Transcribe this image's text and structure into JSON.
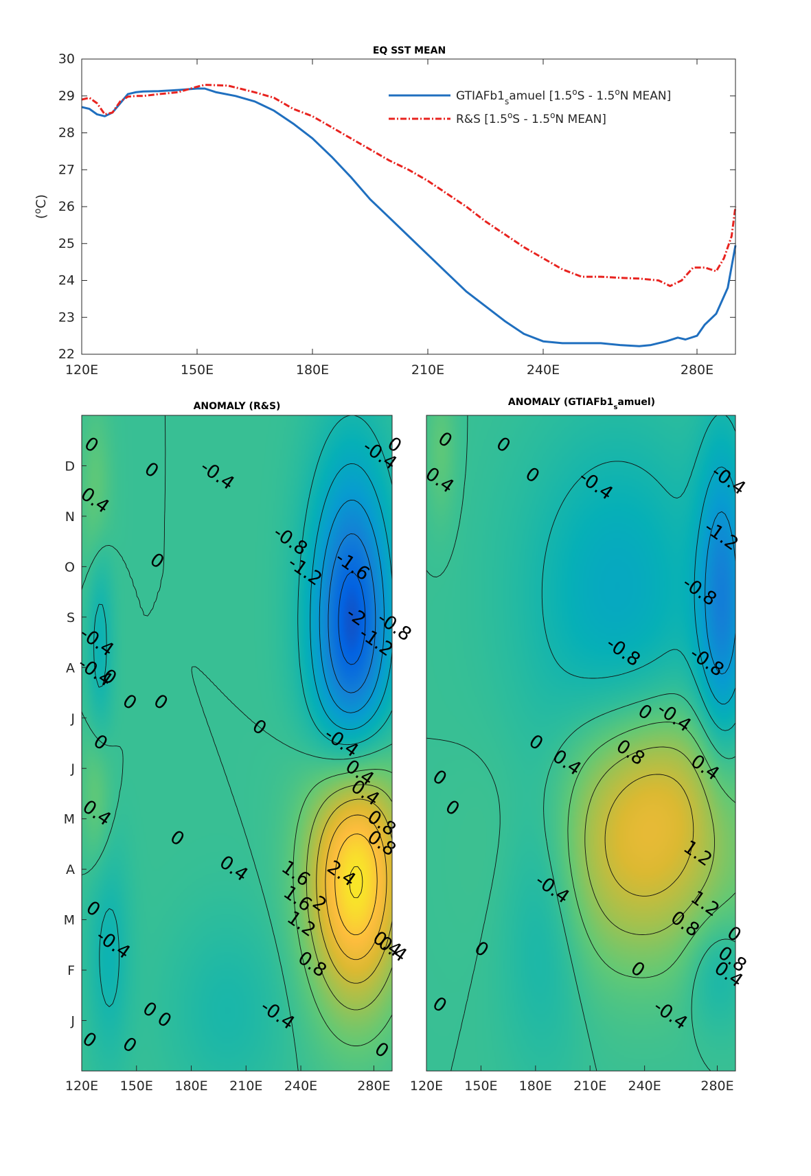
{
  "chart_data": [
    {
      "type": "line",
      "title": "EQ SST MEAN",
      "xlabel": "",
      "ylabel": "(°C)",
      "xlim": [
        120,
        290
      ],
      "ylim": [
        22,
        30
      ],
      "xticks": [
        120,
        150,
        180,
        210,
        240,
        280
      ],
      "xtick_labels": [
        "120E",
        "150E",
        "180E",
        "210E",
        "240E",
        "280E"
      ],
      "yticks": [
        22,
        23,
        24,
        25,
        26,
        27,
        28,
        29,
        30
      ],
      "grid": false,
      "legend_position": "top-right",
      "series": [
        {
          "name": "GTIAFb1_samuel [1.5°S - 1.5°N MEAN]",
          "legend_main": "GTIAFb1",
          "legend_sub": "s",
          "legend_tail": "amuel [1.5",
          "legend_o1": "o",
          "legend_mid": "S - 1.5",
          "legend_o2": "o",
          "legend_end": "N MEAN]",
          "color": "#1f6fbf",
          "style": "solid",
          "x": [
            120,
            122,
            124,
            126,
            128,
            130,
            132,
            134,
            136,
            140,
            145,
            150,
            152,
            155,
            160,
            165,
            170,
            175,
            180,
            185,
            190,
            195,
            200,
            205,
            210,
            215,
            220,
            225,
            230,
            235,
            240,
            245,
            250,
            255,
            260,
            265,
            268,
            272,
            275,
            277,
            280,
            282,
            285,
            288,
            290
          ],
          "y": [
            28.7,
            28.65,
            28.5,
            28.45,
            28.55,
            28.8,
            29.05,
            29.1,
            29.12,
            29.13,
            29.16,
            29.2,
            29.2,
            29.1,
            29.0,
            28.85,
            28.6,
            28.25,
            27.85,
            27.35,
            26.8,
            26.2,
            25.7,
            25.2,
            24.7,
            24.2,
            23.7,
            23.3,
            22.9,
            22.55,
            22.35,
            22.3,
            22.3,
            22.3,
            22.25,
            22.22,
            22.25,
            22.35,
            22.45,
            22.4,
            22.5,
            22.8,
            23.1,
            23.8,
            24.95
          ]
        },
        {
          "name": "R&S [1.5°S - 1.5°N MEAN]",
          "legend_main": "R&S [1.5",
          "legend_o1": "o",
          "legend_mid": "S - 1.5",
          "legend_o2": "o",
          "legend_end": "N MEAN]",
          "color": "#e8231f",
          "style": "dashdot",
          "x": [
            120,
            122,
            124,
            126,
            128,
            130,
            132,
            134,
            136,
            140,
            145,
            150,
            152,
            158,
            165,
            170,
            175,
            180,
            185,
            190,
            195,
            200,
            205,
            210,
            215,
            220,
            225,
            230,
            235,
            240,
            245,
            250,
            255,
            260,
            265,
            270,
            273,
            276,
            279,
            282,
            285,
            287,
            289,
            290
          ],
          "y": [
            28.9,
            28.95,
            28.8,
            28.5,
            28.55,
            28.85,
            28.98,
            29.0,
            29.0,
            29.05,
            29.1,
            29.25,
            29.3,
            29.28,
            29.1,
            28.95,
            28.65,
            28.45,
            28.15,
            27.85,
            27.55,
            27.25,
            27.0,
            26.7,
            26.35,
            26.0,
            25.6,
            25.25,
            24.9,
            24.6,
            24.3,
            24.1,
            24.1,
            24.07,
            24.05,
            24.0,
            23.85,
            24.0,
            24.35,
            24.35,
            24.25,
            24.6,
            25.2,
            26.0
          ]
        }
      ]
    },
    {
      "type": "heatmap",
      "title": "ANOMALY (R&S)",
      "xticks": [
        120,
        150,
        180,
        210,
        240,
        280
      ],
      "xtick_labels": [
        "120E",
        "150E",
        "180E",
        "210E",
        "240E",
        "280E"
      ],
      "xlim": [
        120,
        290
      ],
      "ytick_labels": [
        "J",
        "F",
        "M",
        "A",
        "M",
        "J",
        "J",
        "A",
        "S",
        "O",
        "N",
        "D"
      ],
      "ylim": [
        0,
        13
      ],
      "contour_levels": [
        -2,
        -1.6,
        -1.2,
        -0.8,
        -0.4,
        0,
        0.4,
        0.8,
        1.2,
        1.6,
        2,
        2.4
      ],
      "features": [
        {
          "x": 268,
          "y": 8.7,
          "value": -2.3,
          "sx": 16,
          "sy": 2.3
        },
        {
          "x": 270,
          "y": 4.0,
          "value": 2.7,
          "sx": 18,
          "sy": 1.8
        },
        {
          "x": 130,
          "y": 8.6,
          "value": -0.55,
          "sx": 5,
          "sy": 1.6
        },
        {
          "x": 135,
          "y": 2.3,
          "value": -0.5,
          "sx": 8,
          "sy": 1.5
        },
        {
          "x": 128,
          "y": 11.3,
          "value": 0.45,
          "sx": 6,
          "sy": 1.2
        },
        {
          "x": 128,
          "y": 5.5,
          "value": 0.45,
          "sx": 6,
          "sy": 1.0
        },
        {
          "x": 200,
          "y": 1.2,
          "value": -0.35,
          "sx": 22,
          "sy": 1.3
        }
      ],
      "contour_labels": [
        {
          "text": "0",
          "x": 125,
          "y": 12.4
        },
        {
          "text": "0.4",
          "x": 127,
          "y": 11.3
        },
        {
          "text": "0",
          "x": 158,
          "y": 11.9
        },
        {
          "text": "-0.4",
          "x": 194,
          "y": 11.8
        },
        {
          "text": "-0.4",
          "x": 283,
          "y": 12.2
        },
        {
          "text": "0",
          "x": 291,
          "y": 12.4
        },
        {
          "text": "-0.8",
          "x": 234,
          "y": 10.5
        },
        {
          "text": "-1.2",
          "x": 242,
          "y": 9.9
        },
        {
          "text": "-1.6",
          "x": 268,
          "y": 10.0
        },
        {
          "text": "-2",
          "x": 270,
          "y": 9.0
        },
        {
          "text": "-1.2",
          "x": 281,
          "y": 8.5
        },
        {
          "text": "-0.8",
          "x": 291,
          "y": 8.8
        },
        {
          "text": "0",
          "x": 161,
          "y": 10.1
        },
        {
          "text": "-0.4",
          "x": 128,
          "y": 8.5
        },
        {
          "text": "-0.4",
          "x": 127,
          "y": 7.9
        },
        {
          "text": "0",
          "x": 135,
          "y": 7.8
        },
        {
          "text": "0",
          "x": 146,
          "y": 7.3
        },
        {
          "text": "0",
          "x": 163,
          "y": 7.3
        },
        {
          "text": "0",
          "x": 130,
          "y": 6.5
        },
        {
          "text": "0",
          "x": 217,
          "y": 6.8
        },
        {
          "text": "-0.4",
          "x": 262,
          "y": 6.5
        },
        {
          "text": "0.4",
          "x": 272,
          "y": 5.9
        },
        {
          "text": "0.4",
          "x": 275,
          "y": 5.5
        },
        {
          "text": "0.8",
          "x": 284,
          "y": 4.9
        },
        {
          "text": "0.8",
          "x": 284,
          "y": 4.5
        },
        {
          "text": "0.4",
          "x": 128,
          "y": 5.1
        },
        {
          "text": "0",
          "x": 172,
          "y": 4.6
        },
        {
          "text": "0.4",
          "x": 203,
          "y": 4.0
        },
        {
          "text": "1.6",
          "x": 237,
          "y": 3.9
        },
        {
          "text": "2.4",
          "x": 262,
          "y": 3.9
        },
        {
          "text": "1.6",
          "x": 238,
          "y": 3.4
        },
        {
          "text": "2",
          "x": 250,
          "y": 3.3
        },
        {
          "text": "1.2",
          "x": 240,
          "y": 2.9
        },
        {
          "text": "0.8",
          "x": 246,
          "y": 2.1
        },
        {
          "text": "0.4",
          "x": 287,
          "y": 2.5
        },
        {
          "text": "0.4",
          "x": 290,
          "y": 2.4
        },
        {
          "text": "0",
          "x": 126,
          "y": 3.2
        },
        {
          "text": "-0.4",
          "x": 137,
          "y": 2.5
        },
        {
          "text": "0",
          "x": 157,
          "y": 1.2
        },
        {
          "text": "0",
          "x": 165,
          "y": 1.0
        },
        {
          "text": "-0.4",
          "x": 227,
          "y": 1.1
        },
        {
          "text": "0",
          "x": 124,
          "y": 0.6
        },
        {
          "text": "0",
          "x": 146,
          "y": 0.5
        },
        {
          "text": "0",
          "x": 284,
          "y": 0.4
        }
      ]
    },
    {
      "type": "heatmap",
      "title": "ANOMALY (GTIAFb1_samuel)",
      "title_main": "ANOMALY (GTIAFb1",
      "title_sub": "s",
      "title_tail": "amuel)",
      "xticks": [
        120,
        150,
        180,
        210,
        240,
        280
      ],
      "xtick_labels": [
        "120E",
        "150E",
        "180E",
        "210E",
        "240E",
        "280E"
      ],
      "xlim": [
        120,
        290
      ],
      "ytick_labels": [
        "J",
        "F",
        "M",
        "A",
        "M",
        "J",
        "J",
        "A",
        "S",
        "O",
        "N",
        "D"
      ],
      "ylim": [
        0,
        13
      ],
      "contour_levels": [
        -1.2,
        -0.8,
        -0.4,
        0,
        0.4,
        0.8,
        1.2
      ],
      "features": [
        {
          "x": 283,
          "y": 9.3,
          "value": -1.45,
          "sx": 10,
          "sy": 2.2
        },
        {
          "x": 225,
          "y": 9.5,
          "value": -0.8,
          "sx": 35,
          "sy": 2.2
        },
        {
          "x": 238,
          "y": 4.3,
          "value": 1.3,
          "sx": 38,
          "sy": 1.6
        },
        {
          "x": 250,
          "y": 5.8,
          "value": 0.6,
          "sx": 30,
          "sy": 1.2
        },
        {
          "x": 185,
          "y": 3.4,
          "value": -0.6,
          "sx": 16,
          "sy": 2.0
        },
        {
          "x": 280,
          "y": 2.0,
          "value": -0.5,
          "sx": 12,
          "sy": 0.8
        },
        {
          "x": 128,
          "y": 12.3,
          "value": 0.35,
          "sx": 6,
          "sy": 1.0
        }
      ],
      "contour_labels": [
        {
          "text": "0",
          "x": 130,
          "y": 12.5
        },
        {
          "text": "0",
          "x": 162,
          "y": 12.4
        },
        {
          "text": "0.4",
          "x": 127,
          "y": 11.7
        },
        {
          "text": "0",
          "x": 178,
          "y": 11.8
        },
        {
          "text": "-0.4",
          "x": 213,
          "y": 11.6
        },
        {
          "text": "-0.4",
          "x": 286,
          "y": 11.7
        },
        {
          "text": "-1.2",
          "x": 282,
          "y": 10.6
        },
        {
          "text": "-0.8",
          "x": 270,
          "y": 9.5
        },
        {
          "text": "-0.8",
          "x": 228,
          "y": 8.3
        },
        {
          "text": "-0.8",
          "x": 274,
          "y": 8.1
        },
        {
          "text": "0",
          "x": 240,
          "y": 7.1
        },
        {
          "text": "-0.4",
          "x": 256,
          "y": 7.0
        },
        {
          "text": "0",
          "x": 180,
          "y": 6.5
        },
        {
          "text": "0.4",
          "x": 197,
          "y": 6.1
        },
        {
          "text": "0.8",
          "x": 232,
          "y": 6.3
        },
        {
          "text": "0.4",
          "x": 273,
          "y": 6.0
        },
        {
          "text": "0",
          "x": 127,
          "y": 5.8
        },
        {
          "text": "0",
          "x": 134,
          "y": 5.2
        },
        {
          "text": "1.2",
          "x": 269,
          "y": 4.3
        },
        {
          "text": "-0.4",
          "x": 189,
          "y": 3.6
        },
        {
          "text": "1.2",
          "x": 273,
          "y": 3.3
        },
        {
          "text": "0.8",
          "x": 262,
          "y": 2.9
        },
        {
          "text": "0",
          "x": 289,
          "y": 2.7
        },
        {
          "text": "0.8",
          "x": 288,
          "y": 2.2
        },
        {
          "text": "0.4",
          "x": 286,
          "y": 1.9
        },
        {
          "text": "0",
          "x": 150,
          "y": 2.4
        },
        {
          "text": "0",
          "x": 236,
          "y": 2.0
        },
        {
          "text": "-0.4",
          "x": 254,
          "y": 1.1
        },
        {
          "text": "0",
          "x": 127,
          "y": 1.3
        }
      ]
    }
  ]
}
